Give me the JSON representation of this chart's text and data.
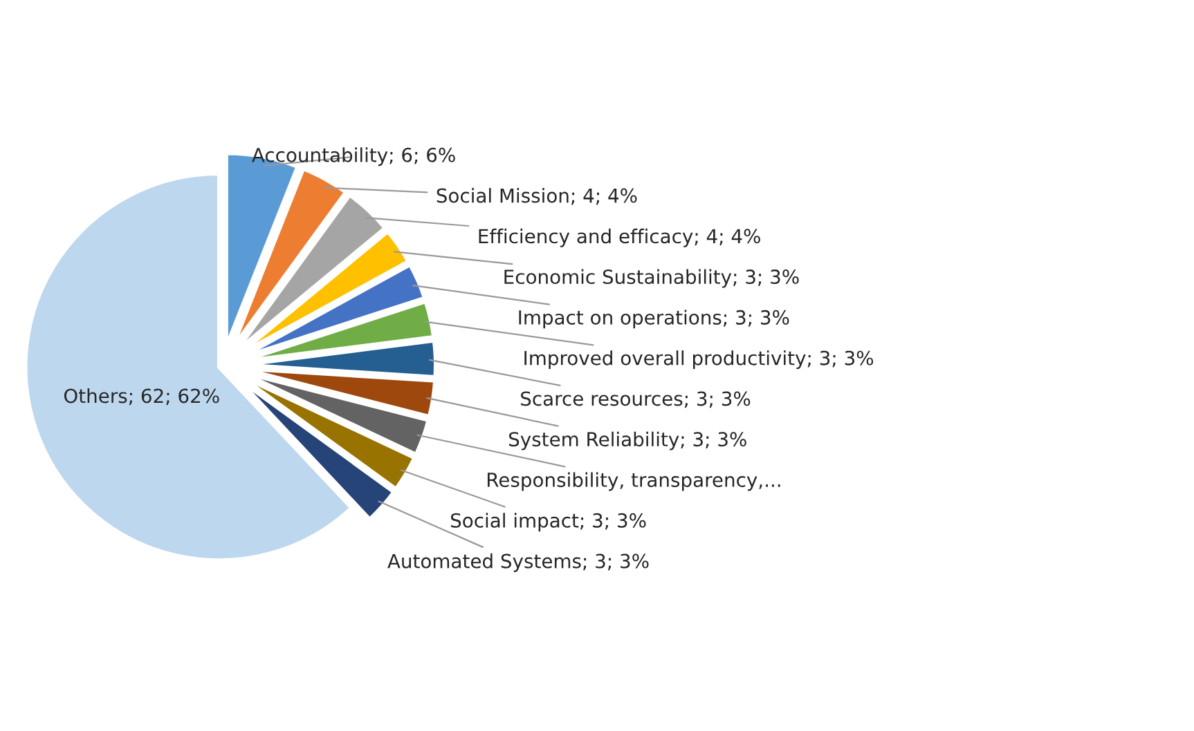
{
  "chart_data": {
    "type": "pie",
    "categories": [
      "Accountability",
      "Social Mission",
      "Efficiency and efficacy",
      "Economic Sustainability",
      "Impact on operations",
      "Improved overall productivity",
      "Scarce resources",
      "System Reliability",
      "Responsibility, transparency,...",
      "Social impact",
      "Automated Systems",
      "Others"
    ],
    "values": [
      6,
      4,
      4,
      3,
      3,
      3,
      3,
      3,
      3,
      3,
      3,
      62
    ],
    "value_labels": [
      "6; 6%",
      "4; 4%",
      "4; 4%",
      "3; 3%",
      "3; 3%",
      "3; 3%",
      "3; 3%",
      "3; 3%",
      null,
      "3; 3%",
      "3; 3%",
      "62; 62%"
    ],
    "colors": [
      "#5b9bd5",
      "#ed7d31",
      "#a5a5a5",
      "#ffc000",
      "#4472c4",
      "#70ad47",
      "#255e91",
      "#9e480e",
      "#636363",
      "#997300",
      "#264478",
      "#bdd7ee"
    ]
  }
}
